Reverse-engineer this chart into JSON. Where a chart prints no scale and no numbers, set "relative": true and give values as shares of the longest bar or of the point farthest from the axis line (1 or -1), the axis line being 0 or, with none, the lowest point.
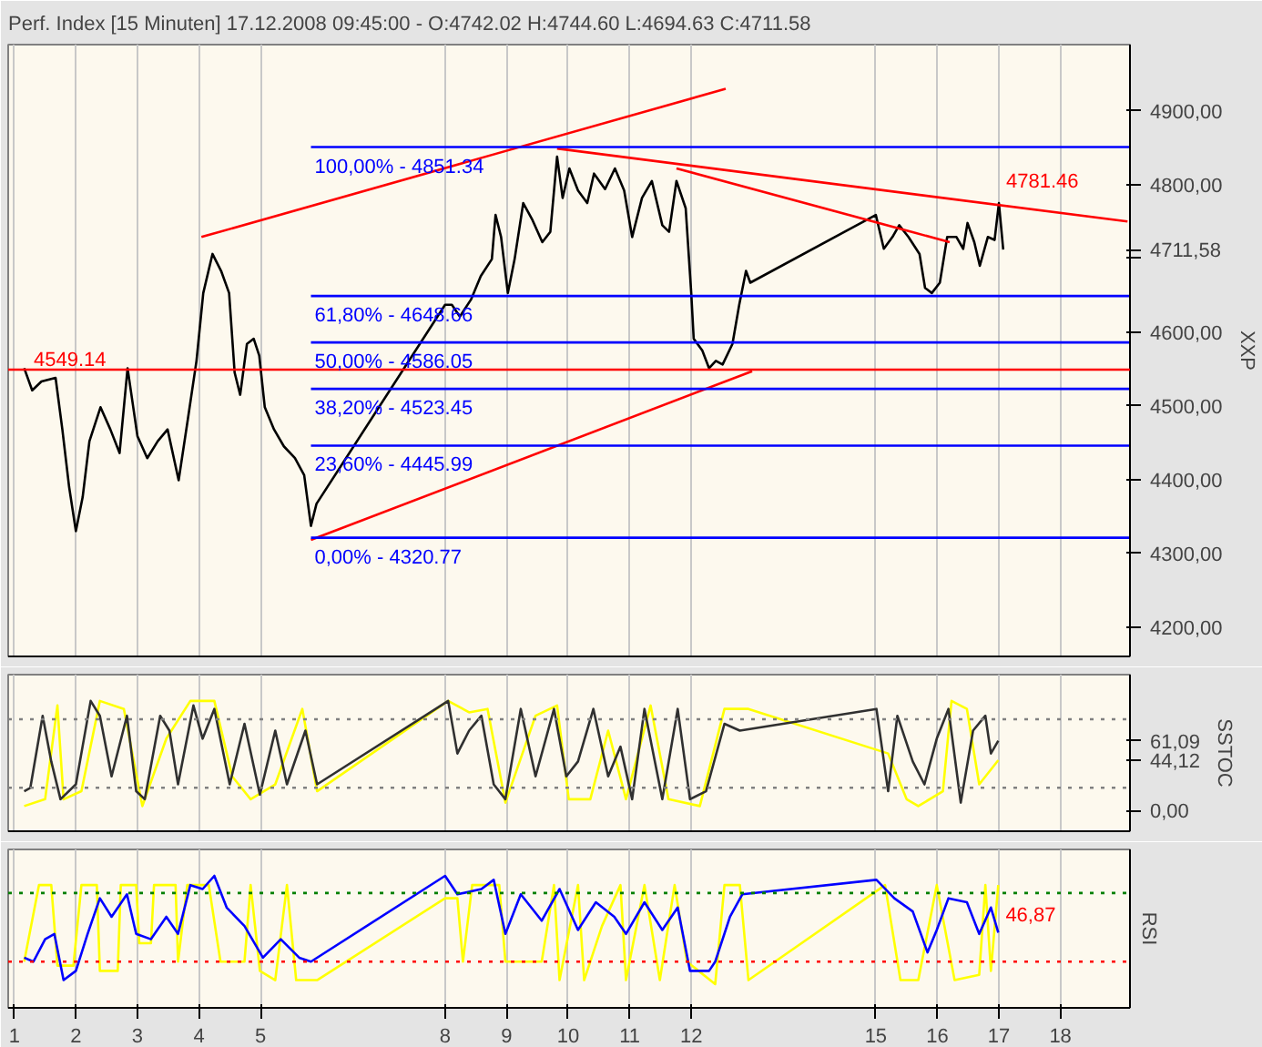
{
  "chart_data": [
    {
      "type": "line",
      "title": "Perf. Index [15 Minuten] 17.12.2008 09:45:00 - O:4742.02 H:4744.60 L:4694.63 C:4711.58",
      "ylabel": "XXP",
      "grid": "x",
      "tick_labels": "y",
      "xlim": [
        0.9,
        19.13
      ],
      "ylim": [
        4160,
        4990
      ],
      "xticks": [
        1,
        2,
        3,
        4,
        5,
        8,
        9,
        10,
        11,
        12,
        15,
        16,
        17,
        18
      ],
      "yticks": [
        {
          "value": 4200,
          "label": "4200,00"
        },
        {
          "value": 4300,
          "label": "4300,00"
        },
        {
          "value": 4400,
          "label": "4400,00"
        },
        {
          "value": 4500,
          "label": "4500,00"
        },
        {
          "value": 4600,
          "label": "4600,00"
        },
        {
          "value": 4700,
          "label": null
        },
        {
          "value": 4711.58,
          "label": "4711,58"
        },
        {
          "value": 4800,
          "label": "4800,00"
        },
        {
          "value": 4900,
          "label": "4900,00"
        }
      ],
      "series": [
        {
          "color": "#000000",
          "x": [
            1.16,
            1.29,
            1.44,
            1.67,
            1.78,
            1.89,
            2.0,
            2.11,
            2.22,
            2.4,
            2.56,
            2.71,
            2.84,
            3.0,
            3.16,
            3.33,
            3.49,
            3.67,
            3.82,
            3.96,
            4.07,
            4.22,
            4.36,
            4.49,
            4.58,
            4.67,
            4.78,
            4.89,
            4.98,
            5.07,
            5.22,
            5.38,
            5.56,
            5.71,
            5.82,
            5.91,
            8.0,
            8.11,
            8.24,
            8.42,
            8.58,
            8.76,
            8.82,
            8.91,
            9.02,
            9.13,
            9.27,
            9.42,
            9.58,
            9.71,
            9.82,
            9.91,
            10.02,
            10.16,
            10.31,
            10.42,
            10.6,
            10.76,
            10.91,
            11.04,
            11.2,
            11.36,
            11.53,
            11.64,
            11.76,
            11.91,
            12.0,
            12.04,
            12.18,
            12.29,
            12.4,
            12.51,
            12.67,
            12.78,
            12.89,
            12.96,
            15.0,
            15.13,
            15.27,
            15.38,
            15.53,
            15.71,
            15.8,
            15.91,
            16.04,
            16.16,
            16.31,
            16.42,
            16.49,
            16.6,
            16.69,
            16.82,
            16.93,
            17.0,
            17.07
          ],
          "values": [
            4551,
            4521,
            4533,
            4538,
            4468,
            4390,
            4330,
            4376,
            4452,
            4498,
            4468,
            4436,
            4551,
            4459,
            4429,
            4452,
            4468,
            4399,
            4482,
            4561,
            4653,
            4706,
            4683,
            4653,
            4545,
            4515,
            4584,
            4591,
            4568,
            4498,
            4468,
            4445,
            4429,
            4406,
            4337,
            4367,
            4637,
            4637,
            4621,
            4644,
            4676,
            4699,
            4759,
            4729,
            4653,
            4699,
            4775,
            4752,
            4722,
            4736,
            4838,
            4782,
            4822,
            4792,
            4775,
            4815,
            4794,
            4822,
            4792,
            4729,
            4782,
            4805,
            4745,
            4736,
            4805,
            4768,
            4653,
            4591,
            4575,
            4551,
            4561,
            4556,
            4584,
            4637,
            4683,
            4667,
            4759,
            4713,
            4729,
            4745,
            4729,
            4706,
            4660,
            4653,
            4667,
            4729,
            4729,
            4713,
            4748,
            4722,
            4690,
            4729,
            4725,
            4775,
            4712
          ]
        },
        {
          "color": "#ff0000",
          "x": [
            4.04,
            12.56
          ],
          "values": [
            4729,
            4930
          ]
        },
        {
          "color": "#ff0000",
          "x": [
            9.82,
            19.09
          ],
          "values": [
            4849,
            4750
          ]
        },
        {
          "color": "#ff0000",
          "x": [
            11.76,
            16.2
          ],
          "values": [
            4822,
            4722
          ]
        },
        {
          "color": "#ff0000",
          "x": [
            5.82,
            12.99
          ],
          "values": [
            4318,
            4547
          ]
        },
        {
          "name": "100,00% - 4851.34",
          "color": "#0000ff",
          "x": [
            5.82,
            19.13
          ],
          "values": [
            4851,
            4851
          ]
        },
        {
          "name": "61,80% - 4648.66",
          "color": "#0000ff",
          "x": [
            5.82,
            19.13
          ],
          "values": [
            4649,
            4649
          ]
        },
        {
          "name": "50,00% - 4586.05",
          "color": "#0000ff",
          "x": [
            5.82,
            19.13
          ],
          "values": [
            4586,
            4586
          ]
        },
        {
          "name": "38,20% - 4523.45",
          "color": "#0000ff",
          "x": [
            5.82,
            19.13
          ],
          "values": [
            4523,
            4523
          ]
        },
        {
          "name": "23,60% - 4445.99",
          "color": "#0000ff",
          "x": [
            5.82,
            19.13
          ],
          "values": [
            4446,
            4446
          ]
        },
        {
          "name": "0,00% - 4320.77",
          "color": "#0000ff",
          "x": [
            5.82,
            19.13
          ],
          "values": [
            4321,
            4321
          ]
        }
      ],
      "ref_lines": [
        {
          "axis": "y",
          "value": 4549.14,
          "label": "4549.14",
          "color": "#ff0000"
        }
      ],
      "annotations": [
        {
          "text": "4781.46",
          "x": 17.0,
          "y": 4781.46
        }
      ]
    },
    {
      "type": "line",
      "ylabel": "SSTOC",
      "grid": "x",
      "tick_labels": "y",
      "xlim": [
        0.9,
        19.13
      ],
      "ylim": [
        -18,
        119
      ],
      "xticks": [
        1,
        2,
        3,
        4,
        5,
        8,
        9,
        10,
        11,
        12,
        15,
        16,
        17,
        18
      ],
      "yticks": [
        {
          "value": 0,
          "label": "0,00"
        },
        {
          "value": 44.12,
          "label": "44,12"
        },
        {
          "value": 61.09,
          "label": "61,09"
        }
      ],
      "series": [
        {
          "color": "#ffff00",
          "x": [
            1.16,
            1.5,
            1.7,
            1.8,
            2.09,
            2.39,
            2.78,
            3.08,
            3.47,
            3.86,
            4.25,
            4.54,
            4.84,
            5.24,
            5.68,
            5.92,
            8.05,
            8.39,
            8.69,
            8.98,
            9.47,
            9.82,
            10.01,
            10.36,
            10.65,
            10.94,
            11.34,
            11.63,
            12.14,
            12.54,
            12.93,
            15.2,
            15.5,
            15.69,
            16.09,
            16.23,
            16.48,
            16.68,
            16.99
          ],
          "values": [
            4,
            10,
            92,
            10,
            17,
            96,
            89,
            4,
            63,
            96,
            96,
            30,
            10,
            23,
            89,
            17,
            96,
            86,
            89,
            7,
            83,
            92,
            10,
            10,
            70,
            10,
            92,
            10,
            4,
            89,
            89,
            50,
            10,
            4,
            17,
            96,
            89,
            23,
            44.12
          ]
        },
        {
          "color": "#303030",
          "x": [
            1.16,
            1.26,
            1.46,
            1.6,
            1.75,
            2.0,
            2.24,
            2.39,
            2.58,
            2.83,
            2.98,
            3.12,
            3.37,
            3.52,
            3.66,
            3.91,
            4.06,
            4.25,
            4.5,
            4.74,
            4.99,
            5.24,
            5.43,
            5.73,
            5.92,
            8.05,
            8.2,
            8.39,
            8.59,
            8.79,
            8.98,
            9.23,
            9.47,
            9.77,
            9.97,
            10.16,
            10.41,
            10.65,
            10.85,
            11.04,
            11.24,
            11.53,
            11.78,
            11.98,
            12.24,
            12.54,
            12.79,
            15.01,
            15.2,
            15.35,
            15.6,
            15.79,
            15.99,
            16.18,
            16.38,
            16.58,
            16.78,
            16.87,
            16.99
          ],
          "values": [
            17,
            20,
            83,
            43,
            10,
            23,
            96,
            83,
            30,
            83,
            17,
            10,
            83,
            70,
            23,
            92,
            63,
            89,
            23,
            76,
            14,
            70,
            23,
            70,
            23,
            96,
            50,
            70,
            83,
            23,
            10,
            89,
            30,
            89,
            30,
            43,
            89,
            30,
            56,
            10,
            89,
            10,
            89,
            10,
            17,
            76,
            70,
            89,
            17,
            83,
            43,
            23,
            63,
            89,
            7,
            70,
            83,
            50,
            61.09
          ]
        }
      ],
      "ref_lines": [
        {
          "axis": "y",
          "value": 20,
          "color": "#808080",
          "line_style": "dotted"
        },
        {
          "axis": "y",
          "value": 80,
          "color": "#808080",
          "line_style": "dotted"
        }
      ]
    },
    {
      "type": "line",
      "ylabel": "RSI",
      "grid": "x",
      "relative": true,
      "xlim": [
        0.9,
        19.13
      ],
      "xticks": [
        1,
        2,
        3,
        4,
        5,
        8,
        9,
        10,
        11,
        12,
        15,
        16,
        17,
        18
      ],
      "series": [
        {
          "color": "#ffff00",
          "x": [
            1.16,
            1.4,
            1.6,
            1.7,
            1.96,
            2.09,
            2.34,
            2.39,
            2.68,
            2.73,
            2.98,
            3.03,
            3.22,
            3.27,
            3.62,
            3.66,
            3.81,
            4.16,
            4.35,
            4.74,
            4.84,
            4.99,
            5.24,
            5.43,
            5.58,
            5.92,
            8.0,
            8.2,
            8.29,
            8.44,
            8.88,
            8.98,
            9.57,
            9.77,
            9.86,
            10.16,
            10.26,
            10.55,
            10.85,
            10.94,
            11.24,
            11.49,
            11.73,
            11.93,
            12.39,
            12.54,
            12.79,
            12.93,
            15.15,
            15.4,
            15.69,
            15.99,
            16.28,
            16.68,
            16.78,
            16.87,
            16.99
          ],
          "values": [
            0.35,
            0.93,
            0.93,
            0.32,
            0.32,
            0.93,
            0.93,
            0.28,
            0.28,
            0.93,
            0.93,
            0.49,
            0.49,
            0.93,
            0.93,
            0.35,
            0.93,
            0.93,
            0.35,
            0.35,
            0.93,
            0.28,
            0.21,
            0.93,
            0.21,
            0.21,
            0.83,
            0.83,
            0.35,
            0.93,
            0.93,
            0.35,
            0.35,
            0.93,
            0.21,
            0.93,
            0.21,
            0.62,
            0.93,
            0.21,
            0.93,
            0.21,
            0.93,
            0.35,
            0.18,
            0.93,
            0.93,
            0.21,
            0.93,
            0.21,
            0.21,
            0.93,
            0.21,
            0.25,
            0.93,
            0.28,
            0.93
          ]
        },
        {
          "color": "#0000ff",
          "x": [
            1.16,
            1.31,
            1.5,
            1.65,
            1.8,
            2.0,
            2.19,
            2.39,
            2.58,
            2.83,
            2.98,
            3.22,
            3.47,
            3.66,
            3.86,
            4.06,
            4.25,
            4.45,
            4.74,
            5.04,
            5.33,
            5.63,
            5.82,
            8.0,
            8.2,
            8.59,
            8.79,
            8.98,
            9.23,
            9.57,
            9.86,
            10.16,
            10.45,
            10.75,
            10.94,
            11.24,
            11.53,
            11.78,
            11.98,
            12.29,
            12.39,
            12.63,
            12.83,
            15.01,
            15.3,
            15.6,
            15.84,
            15.99,
            16.18,
            16.48,
            16.68,
            16.87,
            16.99
          ],
          "values": [
            0.38,
            0.35,
            0.52,
            0.56,
            0.21,
            0.28,
            0.56,
            0.83,
            0.69,
            0.86,
            0.56,
            0.52,
            0.69,
            0.56,
            0.93,
            0.9,
            1,
            0.76,
            0.62,
            0.38,
            0.52,
            0.38,
            0.35,
            1,
            0.86,
            0.9,
            0.97,
            0.56,
            0.86,
            0.66,
            0.9,
            0.59,
            0.8,
            0.69,
            0.56,
            0.8,
            0.59,
            0.76,
            0.28,
            0.28,
            0.35,
            0.69,
            0.86,
            0.97,
            0.83,
            0.73,
            0.42,
            0.59,
            0.83,
            0.8,
            0.56,
            0.76,
            0.57
          ]
        }
      ],
      "ref_lines": [
        {
          "axis": "y",
          "value": 0.87,
          "color": "#008000",
          "line_style": "dotted"
        },
        {
          "axis": "y",
          "value": 0.35,
          "color": "#ff0000",
          "line_style": "dotted"
        }
      ],
      "annotations": [
        {
          "text": "46,87",
          "x": 16.99,
          "y": 0.57
        }
      ]
    }
  ]
}
